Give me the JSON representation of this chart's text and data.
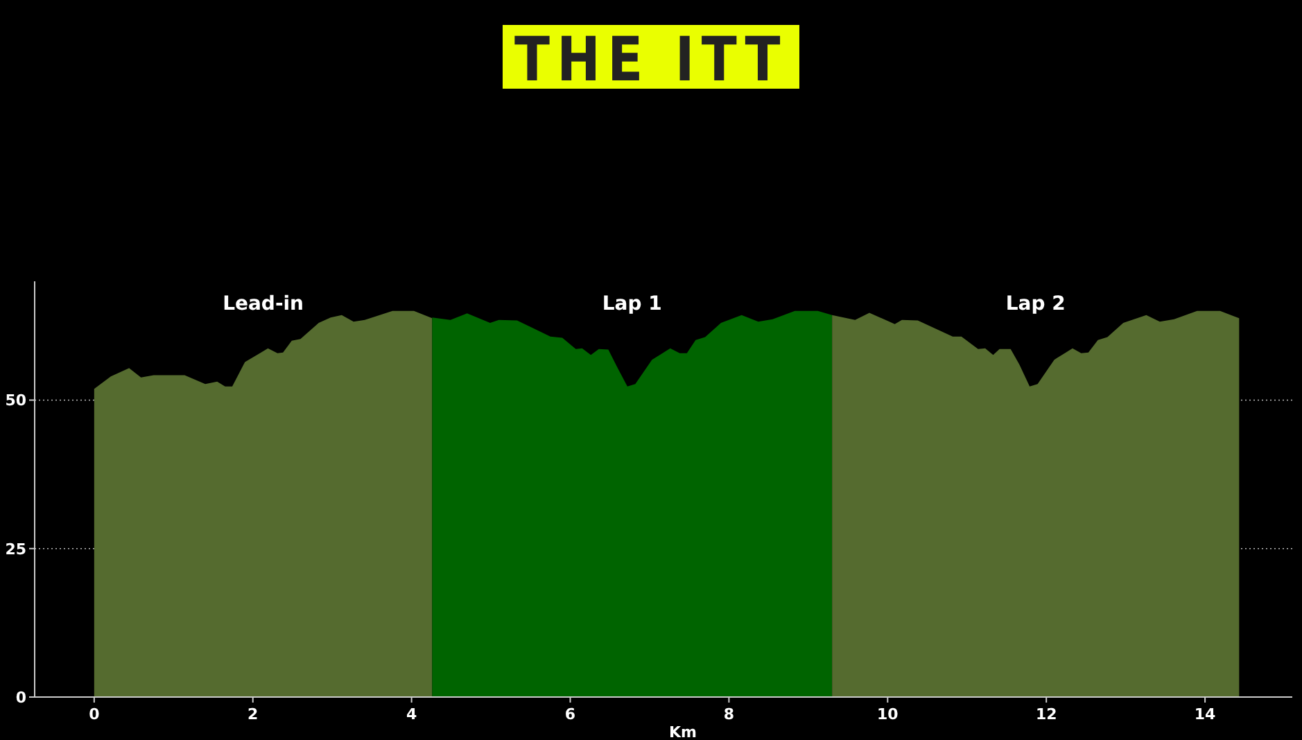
{
  "chart_data": {
    "type": "area",
    "title": "THE ITT",
    "xlabel": "Km",
    "xlim": [
      -0.75,
      15.1
    ],
    "xticks": [
      0,
      2,
      4,
      6,
      8,
      10,
      12,
      14
    ],
    "ylim": [
      0,
      70
    ],
    "yticks": [
      0,
      25,
      50
    ],
    "grid": "y",
    "series": [
      {
        "name": "Lead-in",
        "color": "#556b2f",
        "x": [
          0,
          0.21,
          0.44,
          0.59,
          0.75,
          1.14,
          1.4,
          1.55,
          1.65,
          1.74,
          1.9,
          2.19,
          2.31,
          2.38,
          2.49,
          2.6,
          2.83,
          2.98,
          3.12,
          3.27,
          3.41,
          3.76,
          4.03,
          4.26
        ],
        "values": [
          51.9,
          54,
          55.4,
          53.8,
          54.2,
          54.2,
          52.7,
          53.1,
          52.3,
          52.3,
          56.4,
          58.7,
          57.9,
          58,
          60,
          60.3,
          63,
          63.9,
          64.3,
          63.2,
          63.5,
          65,
          65,
          63.8
        ]
      },
      {
        "name": "Lap 1",
        "color": "#006400",
        "x": [
          4.26,
          4.49,
          4.7,
          4.99,
          5.1,
          5.33,
          5.75,
          5.9,
          6.07,
          6.15,
          6.26,
          6.36,
          6.48,
          6.59,
          6.72,
          6.82,
          7.03,
          7.26,
          7.38,
          7.47,
          7.58,
          7.7,
          7.9,
          8.16,
          8.37,
          8.55,
          8.83,
          9.12,
          9.3
        ],
        "values": [
          63.9,
          63.5,
          64.6,
          63,
          63.5,
          63.4,
          60.7,
          60.5,
          58.6,
          58.7,
          57.6,
          58.6,
          58.5,
          55.6,
          52.3,
          52.7,
          56.8,
          58.7,
          57.9,
          57.9,
          60.1,
          60.6,
          63,
          64.3,
          63.2,
          63.6,
          65,
          65,
          64.3
        ]
      },
      {
        "name": "Lap 2",
        "color": "#556b2f",
        "x": [
          9.3,
          9.59,
          9.77,
          10.09,
          10.18,
          10.38,
          10.82,
          10.93,
          11.14,
          11.23,
          11.33,
          11.41,
          11.55,
          11.66,
          11.79,
          11.89,
          12.1,
          12.33,
          12.44,
          12.53,
          12.65,
          12.77,
          12.97,
          13.26,
          13.43,
          13.61,
          13.9,
          14.19,
          14.43
        ],
        "values": [
          64.3,
          63.5,
          64.7,
          62.8,
          63.5,
          63.4,
          60.7,
          60.7,
          58.6,
          58.7,
          57.6,
          58.6,
          58.6,
          56,
          52.3,
          52.7,
          56.8,
          58.7,
          57.9,
          58,
          60.1,
          60.6,
          63,
          64.3,
          63.2,
          63.6,
          65,
          65,
          63.8
        ]
      }
    ]
  }
}
